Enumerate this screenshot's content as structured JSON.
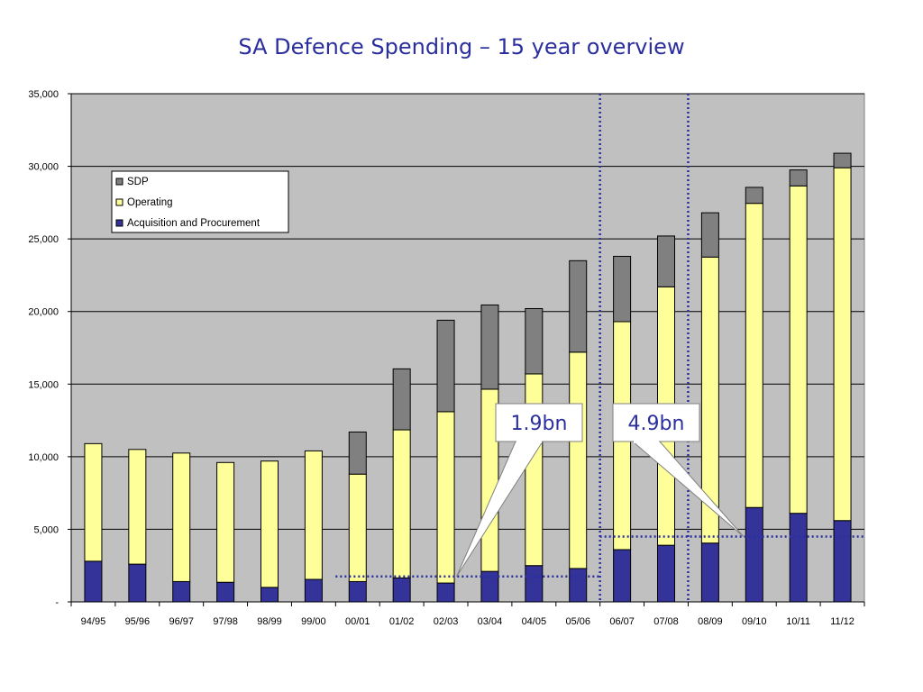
{
  "chart_data": {
    "type": "bar",
    "stacked": true,
    "title": "SA Defence Spending – 15 year overview",
    "categories": [
      "94/95",
      "95/96",
      "96/97",
      "97/98",
      "98/99",
      "99/00",
      "00/01",
      "01/02",
      "02/03",
      "03/04",
      "04/05",
      "05/06",
      "06/07",
      "07/08",
      "08/09",
      "09/10",
      "10/11",
      "11/12"
    ],
    "series": [
      {
        "name": "Acquisition and Procurement",
        "color": "#333399",
        "values": [
          2800,
          2600,
          1400,
          1350,
          1000,
          1550,
          1400,
          1650,
          1300,
          2100,
          2500,
          2300,
          3600,
          3900,
          4050,
          6500,
          6100,
          5600
        ]
      },
      {
        "name": "Operating",
        "color": "#ffff99",
        "values": [
          8100,
          7900,
          8850,
          8250,
          8700,
          8850,
          7400,
          10200,
          11800,
          12550,
          13200,
          14900,
          15700,
          17800,
          19700,
          20950,
          22550,
          24300
        ]
      },
      {
        "name": "SDP",
        "color": "#808080",
        "values": [
          0,
          0,
          0,
          0,
          0,
          0,
          2900,
          4200,
          6300,
          5800,
          4500,
          6300,
          4500,
          3500,
          3050,
          1100,
          1100,
          1000
        ]
      }
    ],
    "ylim": [
      0,
      35000
    ],
    "yticks": [
      0,
      5000,
      10000,
      15000,
      20000,
      25000,
      30000,
      35000
    ],
    "ytick_labels": [
      "-",
      "5,000",
      "10,000",
      "15,000",
      "20,000",
      "25,000",
      "30,000",
      "35,000"
    ],
    "grid": true,
    "plot_background": "#c0c0c0",
    "legend_position": "top-left",
    "legend_order": [
      "SDP",
      "Operating",
      "Acquisition and Procurement"
    ],
    "annotations": [
      {
        "text": "1.9bn",
        "ref_line_y": 1750,
        "ref_line_from": "00/01",
        "ref_line_to": "05/06",
        "pointer_category": "02/03"
      },
      {
        "text": "4.9bn",
        "ref_line_y": 4500,
        "ref_line_from": "06/07",
        "ref_line_to": "11/12",
        "pointer_category": "09/10"
      }
    ],
    "period_dividers": [
      "05/06|06/07",
      "07/08|08/09"
    ],
    "annotation_color": "#2b2f9e"
  }
}
